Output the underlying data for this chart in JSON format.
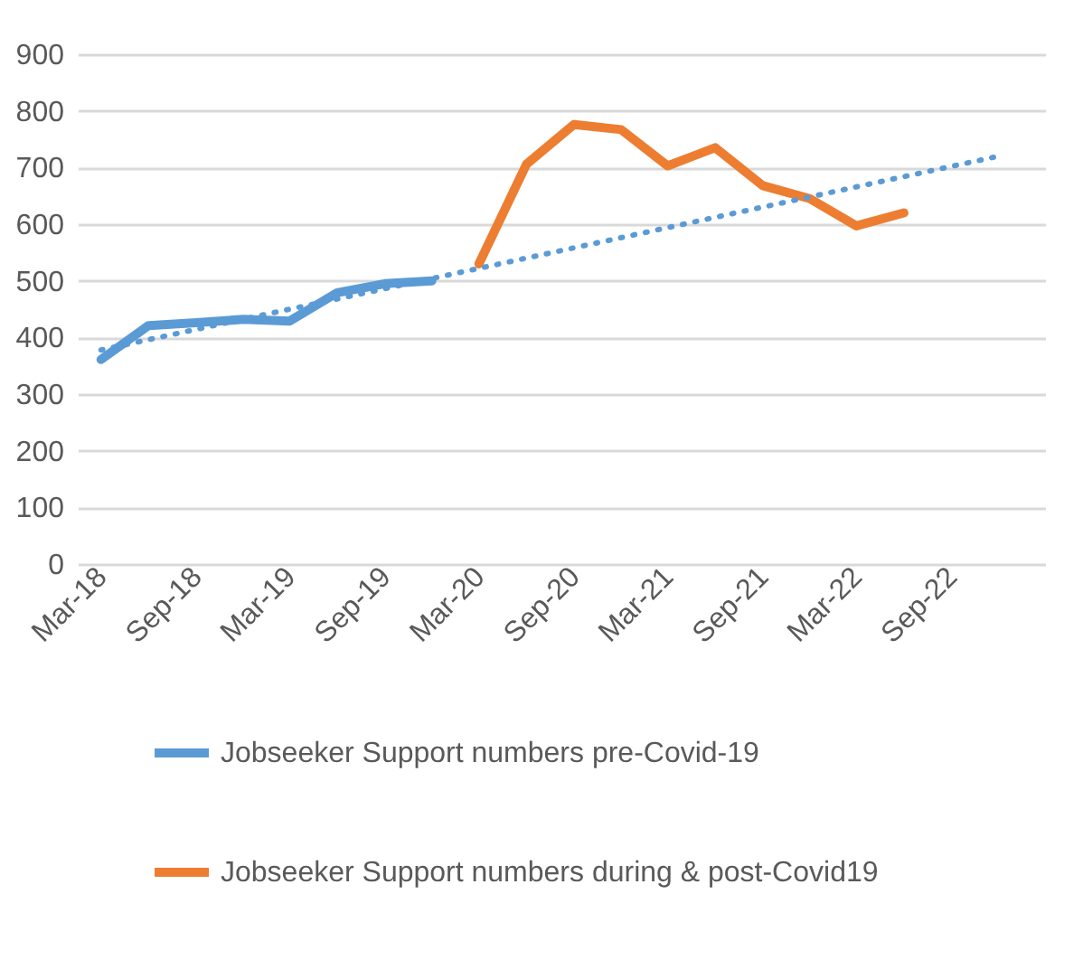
{
  "chart_data": {
    "type": "line",
    "xlim": [
      "2018-01-15",
      "2023-03-01"
    ],
    "xticks": [
      {
        "value": "2018-03",
        "label": "Mar-18"
      },
      {
        "value": "2018-09",
        "label": "Sep-18"
      },
      {
        "value": "2019-03",
        "label": "Mar-19"
      },
      {
        "value": "2019-09",
        "label": "Sep-19"
      },
      {
        "value": "2020-03",
        "label": "Mar-20"
      },
      {
        "value": "2020-09",
        "label": "Sep-20"
      },
      {
        "value": "2021-03",
        "label": "Mar-21"
      },
      {
        "value": "2021-09",
        "label": "Sep-21"
      },
      {
        "value": "2022-03",
        "label": "Mar-22"
      },
      {
        "value": "2022-09",
        "label": "Sep-22"
      }
    ],
    "ylim": [
      0,
      900
    ],
    "yticks": [
      0,
      100,
      200,
      300,
      400,
      500,
      600,
      700,
      800,
      900
    ],
    "grid": "y",
    "legend": "bottom",
    "marker": "none",
    "series": [
      {
        "name": "Jobseeker Support numbers pre-Covid-19",
        "color": "#5b9bd5",
        "type": "line",
        "line_style": "solid",
        "x": [
          "2018-03",
          "2018-06",
          "2018-09",
          "2018-12",
          "2019-03",
          "2019-06",
          "2019-09",
          "2019-12"
        ],
        "values": [
          361,
          421,
          426,
          432,
          429,
          479,
          495,
          500
        ]
      },
      {
        "name": "Jobseeker Support numbers during & post-Covid19",
        "color": "#ed7d31",
        "type": "line",
        "line_style": "solid",
        "x": [
          "2020-03",
          "2020-06",
          "2020-09",
          "2020-12",
          "2021-03",
          "2021-06",
          "2021-09",
          "2021-12",
          "2022-03",
          "2022-06"
        ],
        "values": [
          530,
          706,
          776,
          767,
          703,
          735,
          668,
          645,
          597,
          620
        ]
      },
      {
        "color": "#5b9bd5",
        "type": "line",
        "line_style": "dotted",
        "x": [
          "2018-03",
          "2022-12"
        ],
        "values": [
          378,
          720
        ]
      }
    ]
  }
}
